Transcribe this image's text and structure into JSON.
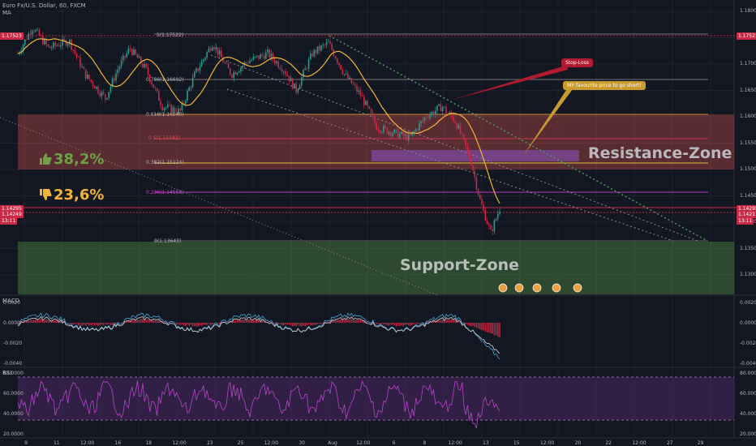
{
  "header": {
    "symbol": "Euro Fx/U.S. Dollar, 60, FXCM",
    "indicator": "MA"
  },
  "colors": {
    "background": "#131722",
    "candle_up": "#2e9a8e",
    "candle_down": "#c92a45",
    "ma_line": "#f2b438",
    "resistance_zone": "#f05a55",
    "support_zone": "#4e8a45",
    "rsi_band": "#6b2d8a"
  },
  "price_axis": {
    "labels": [
      "1.18000",
      "1.17500",
      "1.17000",
      "1.16500",
      "1.16000",
      "1.15500",
      "1.15000",
      "1.14500",
      "1.14000",
      "1.13500",
      "1.13000"
    ]
  },
  "price_badges": {
    "left_top": "1.17523",
    "left_mid1": "1.14295",
    "left_mid2": "1.14249",
    "left_time": "13:11",
    "right_top": "1.17523",
    "right_mid1": "1.14295",
    "right_mid2": "1.14211",
    "right_time": "13:11"
  },
  "fib": [
    "1(1.17522)",
    "0.786(1.16692)",
    "0.618(1.16040)",
    "0.5(1.15582)",
    "0.382(1.15124)",
    "0.236(1.14558)",
    "0(1.13643)"
  ],
  "annotations": {
    "resistance": "Resistance-Zone",
    "support": "Support-Zone",
    "like_pct": "38,2%",
    "dislike_pct": "23,6%",
    "stop_loss": "Stop-Loss",
    "favourite": "MY favourite price to go short!"
  },
  "macd": {
    "label": "MACD",
    "ticks": [
      "0.0020",
      "0.0000",
      "-0.0020",
      "-0.0040"
    ]
  },
  "rsi": {
    "label": "RSI",
    "ticks": [
      "80.0000",
      "60.0000",
      "40.0000",
      "20.0000"
    ]
  },
  "time_axis": [
    "9",
    "11",
    "12:00",
    "16",
    "18",
    "12:00",
    "23",
    "25",
    "12:00",
    "30",
    "Aug",
    "12:00",
    "6",
    "8",
    "12:00",
    "13",
    "15",
    "12:00",
    "20",
    "22",
    "12:00",
    "27",
    "29"
  ],
  "icons": [
    "thumbs-up-icon",
    "thumbs-down-icon",
    "event-flag-icon"
  ]
}
